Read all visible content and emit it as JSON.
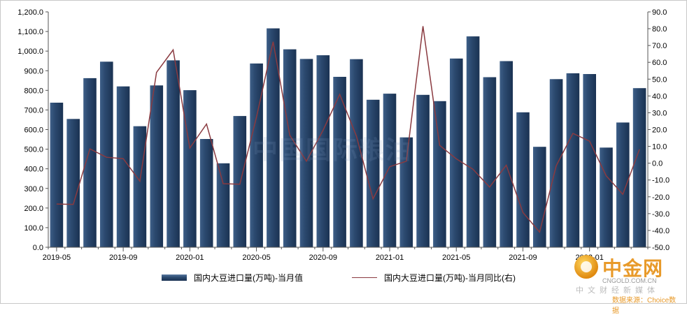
{
  "chart_data": {
    "type": "bar",
    "categories": [
      "2019-05",
      "2019-06",
      "2019-07",
      "2019-08",
      "2019-09",
      "2019-10",
      "2019-11",
      "2019-12",
      "2020-01",
      "2020-02",
      "2020-03",
      "2020-04",
      "2020-05",
      "2020-06",
      "2020-07",
      "2020-08",
      "2020-09",
      "2020-10",
      "2020-11",
      "2020-12",
      "2021-01",
      "2021-02",
      "2021-03",
      "2021-04",
      "2021-05",
      "2021-06",
      "2021-07",
      "2021-08",
      "2021-09",
      "2021-10",
      "2021-11",
      "2021-12",
      "2022-01",
      "2022-02",
      "2022-03",
      "2022-04"
    ],
    "x_tick_labels": [
      "2019-05",
      "2019-09",
      "2020-01",
      "2020-05",
      "2020-09",
      "2021-01",
      "2021-05",
      "2021-09",
      "2022-01"
    ],
    "series": [
      {
        "name": "国内大豆进口量(万吨)-当月值",
        "type": "bar",
        "axis": "left",
        "values": [
          737,
          654,
          862,
          946,
          820,
          617,
          825,
          953,
          801,
          552,
          428,
          669,
          937,
          1116,
          1009,
          960,
          979,
          869,
          959,
          752,
          783,
          560,
          777,
          745,
          962,
          1075,
          867,
          949,
          688,
          512,
          857,
          887,
          883,
          508,
          636,
          811
        ]
      },
      {
        "name": "国内大豆进口量(万吨)-当月同比(右)",
        "type": "line",
        "axis": "right",
        "values": [
          -24.3,
          -24.5,
          8.5,
          3.5,
          2.7,
          -10.7,
          54.0,
          67.4,
          9.0,
          23.3,
          -12.2,
          -12.5,
          27.4,
          72.2,
          16.6,
          1.2,
          19.6,
          40.9,
          16.2,
          -21.2,
          -2.1,
          1.2,
          81.5,
          10.6,
          2.6,
          -3.6,
          -14.2,
          -1.2,
          -29.3,
          -41.0,
          -1.5,
          17.7,
          13.1,
          -7.5,
          -18.5,
          8.3
        ]
      }
    ],
    "y_left": {
      "ylim": [
        0,
        1200
      ],
      "ticks": [
        "0.0",
        "100.0",
        "200.0",
        "300.0",
        "400.0",
        "500.0",
        "600.0",
        "700.0",
        "800.0",
        "900.0",
        "1,000.0",
        "1,100.0",
        "1,200.0"
      ]
    },
    "y_right": {
      "ylim": [
        -50,
        90
      ],
      "ticks": [
        "-50.0",
        "-40.0",
        "-30.0",
        "-20.0",
        "-10.0",
        "0.0",
        "10.0",
        "20.0",
        "30.0",
        "40.0",
        "50.0",
        "60.0",
        "70.0",
        "80.0",
        "90.0"
      ]
    },
    "legend_position": "bottom",
    "grid": false,
    "colors": {
      "bar": "#2c4a70",
      "line": "#8a3a40"
    }
  },
  "legend": {
    "bar_label": "国内大豆进口量(万吨)-当月值",
    "line_label": "国内大豆进口量(万吨)-当月同比(右)"
  },
  "watermark": {
    "text": "中国国际粮油"
  },
  "logo": {
    "name": "中金网",
    "domain": "CNGOLD.COM.CN",
    "slogan": "中文财经新媒体",
    "source": "数据来源：Choice数据"
  }
}
